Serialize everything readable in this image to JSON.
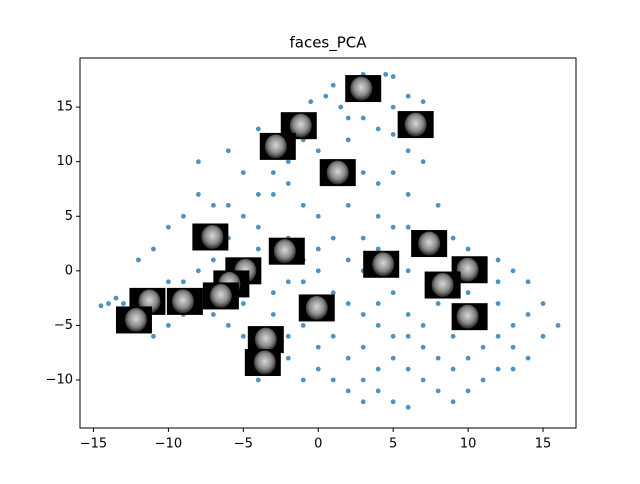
{
  "chart_data": {
    "type": "scatter",
    "title": "faces_PCA",
    "color": "#1f77b4",
    "x": [
      2,
      3,
      4.5,
      5,
      1,
      6,
      7,
      0.5,
      1.5,
      -0.5,
      3,
      4,
      5,
      2,
      6,
      7,
      -1,
      -3,
      -4,
      -6,
      -8,
      0,
      1,
      3,
      4,
      5,
      6,
      8,
      -2,
      -3,
      -5,
      -7,
      -8,
      -9,
      -10,
      -11,
      -12,
      -6,
      -4,
      -1,
      0,
      2,
      4,
      6,
      9,
      10,
      12,
      13,
      14,
      15,
      16,
      15,
      14,
      13,
      12,
      11,
      10,
      9,
      8,
      6,
      5,
      4,
      3,
      2,
      1,
      0,
      -1,
      -2,
      -4,
      -5,
      -6,
      -7,
      -8,
      -9,
      -10,
      -11,
      -12,
      -13,
      -14,
      -14.5,
      -13.5,
      -12,
      -10,
      -8,
      -6,
      -4,
      -2,
      0,
      2,
      4,
      6,
      8,
      10,
      12,
      11,
      9,
      7,
      5,
      3,
      1,
      -1,
      -3,
      -5,
      -7,
      0,
      1,
      2,
      3,
      4,
      5,
      6,
      7,
      8,
      9,
      10,
      11,
      12,
      13,
      14,
      13,
      7,
      6,
      4,
      2,
      0,
      -2,
      -3,
      -1,
      1,
      3,
      5,
      7,
      -2,
      -3,
      2,
      5,
      4,
      -5,
      -4,
      -6,
      -7,
      -9,
      -11,
      6,
      8,
      10,
      12,
      3,
      -1,
      -2,
      4,
      5,
      3,
      -3,
      -4
    ],
    "values": [
      17.5,
      18,
      18,
      17.8,
      17,
      16,
      15.5,
      16,
      15,
      15.5,
      14,
      13,
      12.5,
      12,
      11,
      10,
      12,
      11,
      13,
      11,
      10,
      11,
      10,
      9,
      8,
      9,
      7,
      6,
      8,
      7,
      5,
      6,
      7,
      5,
      4,
      2,
      1,
      3,
      4,
      6,
      5,
      6,
      5,
      4,
      3,
      2,
      1,
      0,
      -1,
      -3,
      -5,
      -6,
      -4,
      -7,
      -9,
      -10,
      -11,
      -12,
      -11,
      -12.5,
      -12,
      -11,
      -12,
      -11,
      -10,
      -9,
      -10,
      -8,
      -7,
      -6,
      -5,
      -4,
      -3,
      -4,
      -5,
      -6,
      -4,
      -3,
      -3,
      -3.2,
      -2.5,
      -2,
      -1,
      0,
      1,
      2,
      3,
      2,
      1,
      2,
      0,
      -1,
      -2,
      -3,
      -5,
      -6,
      -7,
      -8,
      -7,
      -6,
      -5,
      -4,
      -3,
      -2,
      0,
      -2,
      -3,
      -4,
      -3,
      -2,
      -4,
      -5,
      -8,
      -9,
      -8,
      -7,
      -6,
      -5,
      -8,
      -9,
      -10,
      -9,
      -9,
      -8,
      -7,
      -6,
      -2,
      -1,
      3,
      3,
      4,
      3,
      10,
      9,
      14,
      15,
      16,
      9,
      7,
      6,
      1,
      -1,
      -3,
      -6,
      -3,
      -4,
      -1,
      0,
      1,
      -1,
      -5,
      -6,
      -10,
      -9,
      -10
    ],
    "thumbnails": {
      "x": [
        3.0,
        6.5,
        -1.3,
        -2.7,
        1.3,
        -7.2,
        -2.1,
        7.4,
        4.2,
        10.1,
        8.3,
        -5.0,
        -5.8,
        -6.5,
        -11.4,
        -8.9,
        -0.1,
        -12.3,
        10.1,
        -3.5,
        -3.7
      ],
      "y": [
        16.7,
        13.4,
        13.3,
        11.4,
        9.0,
        3.1,
        1.8,
        2.5,
        0.6,
        0.1,
        -1.3,
        0.0,
        -1.2,
        -2.3,
        -2.8,
        -2.8,
        -3.4,
        -4.5,
        -4.2,
        -6.3,
        -8.4
      ]
    },
    "xlim": [
      -15.9,
      17.2
    ],
    "ylim": [
      -14.4,
      19.5
    ],
    "xticks": [
      {
        "value": -15,
        "label": "−15"
      },
      {
        "value": -10,
        "label": "−10"
      },
      {
        "value": -5,
        "label": "−5"
      },
      0,
      5,
      10,
      15
    ],
    "yticks": [
      {
        "value": -10,
        "label": "−10"
      },
      {
        "value": -5,
        "label": "−5"
      },
      0,
      5,
      10,
      15
    ]
  }
}
